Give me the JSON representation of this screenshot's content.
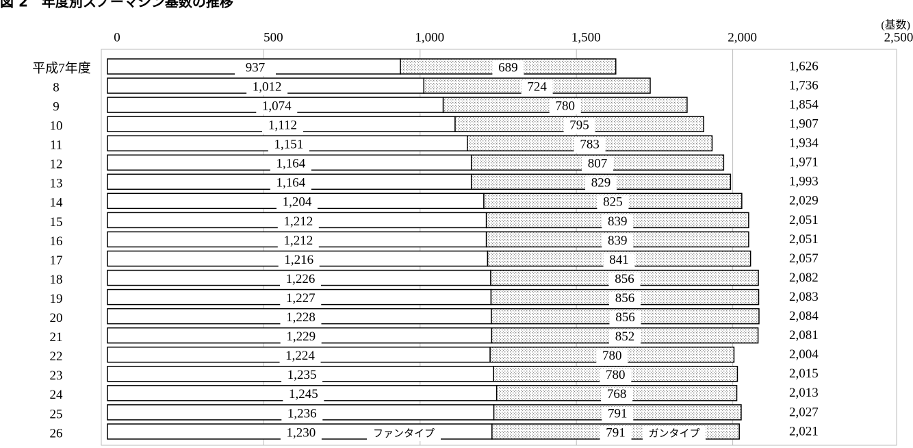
{
  "chart_data": {
    "type": "stacked-barh",
    "title": "図 2　年度別スノーマシン基数の推移",
    "unit_label": "(基数)",
    "categories": [
      "平成7年度",
      "8",
      "9",
      "10",
      "11",
      "12",
      "13",
      "14",
      "15",
      "16",
      "17",
      "18",
      "19",
      "20",
      "21",
      "22",
      "23",
      "24",
      "25",
      "26"
    ],
    "series": [
      {
        "name": "ファンタイプ",
        "color": "#ffffff",
        "values": [
          937,
          1012,
          1074,
          1112,
          1151,
          1164,
          1164,
          1204,
          1212,
          1212,
          1216,
          1226,
          1227,
          1228,
          1229,
          1224,
          1235,
          1245,
          1236,
          1230
        ],
        "value_labels": [
          "937",
          "1,012",
          "1,074",
          "1,112",
          "1,151",
          "1,164",
          "1,164",
          "1,204",
          "1,212",
          "1,212",
          "1,216",
          "1,226",
          "1,227",
          "1,228",
          "1,229",
          "1,224",
          "1,235",
          "1,245",
          "1,236",
          "1,230"
        ]
      },
      {
        "name": "ガンタイプ",
        "color": "#8c8c8c",
        "values": [
          689,
          724,
          780,
          795,
          783,
          807,
          829,
          825,
          839,
          839,
          841,
          856,
          856,
          856,
          852,
          780,
          780,
          768,
          791,
          791
        ]
      }
    ],
    "totals": [
      1626,
      1736,
      1854,
      1907,
      1934,
      1971,
      1993,
      2029,
      2051,
      2051,
      2057,
      2082,
      2083,
      2084,
      2081,
      2004,
      2015,
      2013,
      2027,
      2021
    ],
    "total_labels": [
      "1,626",
      "1,736",
      "1,854",
      "1,907",
      "1,934",
      "1,971",
      "1,993",
      "2,029",
      "2,051",
      "2,051",
      "2,057",
      "2,082",
      "2,083",
      "2,084",
      "2,081",
      "2,004",
      "2,015",
      "2,013",
      "2,027",
      "2,021"
    ],
    "xlim": [
      0,
      2500
    ],
    "xticks": [
      0,
      500,
      {
        "value": 1000,
        "label": "1,000"
      },
      {
        "value": 1500,
        "label": "1,500"
      },
      {
        "value": 2000,
        "label": "2,000"
      },
      {
        "value": 2500,
        "label": "2,500"
      }
    ],
    "grid": true
  }
}
